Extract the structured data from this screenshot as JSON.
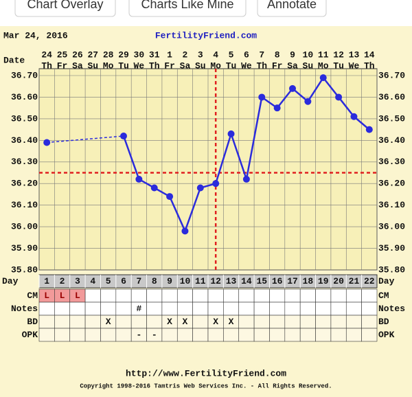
{
  "buttons": [
    "Chart Overlay",
    "Charts Like Mine",
    "Annotate"
  ],
  "chart_data": {
    "type": "line",
    "date_label": "Mar 24, 2016",
    "site": "FertilityFriend.com",
    "date_header": "Date",
    "day_header": "Day",
    "dates": [
      24,
      25,
      26,
      27,
      28,
      29,
      30,
      31,
      1,
      2,
      3,
      4,
      5,
      6,
      7,
      8,
      9,
      10,
      11,
      12,
      13,
      14
    ],
    "weekdays": [
      "Th",
      "Fr",
      "Sa",
      "Su",
      "Mo",
      "Tu",
      "We",
      "Th",
      "Fr",
      "Sa",
      "Su",
      "Mo",
      "Tu",
      "We",
      "Th",
      "Fr",
      "Sa",
      "Su",
      "Mo",
      "Tu",
      "We",
      "Th"
    ],
    "categories": [
      1,
      2,
      3,
      4,
      5,
      6,
      7,
      8,
      9,
      10,
      11,
      12,
      13,
      14,
      15,
      16,
      17,
      18,
      19,
      20,
      21,
      22
    ],
    "series": [
      {
        "color": "#2b2bdc",
        "values": [
          36.39,
          null,
          null,
          null,
          null,
          36.42,
          36.22,
          36.18,
          36.14,
          35.98,
          36.18,
          36.2,
          36.43,
          36.22,
          36.6,
          36.55,
          36.64,
          36.58,
          36.69,
          36.6,
          36.51,
          36.45
        ]
      }
    ],
    "ylim": [
      35.8,
      36.7
    ],
    "yticks": [
      {
        "value": 36.7,
        "label": "36.70"
      },
      {
        "value": 36.6,
        "label": "36.60"
      },
      {
        "value": 36.5,
        "label": "36.50"
      },
      {
        "value": 36.4,
        "label": "36.40"
      },
      {
        "value": 36.3,
        "label": "36.30"
      },
      {
        "value": 36.2,
        "label": "36.20"
      },
      {
        "value": 36.1,
        "label": "36.10"
      },
      {
        "value": 36.0,
        "label": "36.00"
      },
      {
        "value": 35.9,
        "label": "35.90"
      },
      {
        "value": 35.8,
        "label": "35.80"
      }
    ],
    "grid": true,
    "coverline": 36.25,
    "ovulation_day": 12,
    "marker_color": "#e02020",
    "rows": [
      {
        "label": "CM",
        "cells": [
          "L",
          "L",
          "L",
          null,
          null,
          null,
          null,
          null,
          null,
          null,
          null,
          null,
          null,
          null,
          null,
          null,
          null,
          null,
          null,
          null,
          null,
          null
        ]
      },
      {
        "label": "Notes",
        "cells": [
          null,
          null,
          null,
          null,
          null,
          null,
          "#",
          null,
          null,
          null,
          null,
          null,
          null,
          null,
          null,
          null,
          null,
          null,
          null,
          null,
          null,
          null
        ]
      },
      {
        "label": "BD",
        "cells": [
          null,
          null,
          null,
          null,
          "X",
          null,
          null,
          null,
          "X",
          "X",
          null,
          "X",
          "X",
          null,
          null,
          null,
          null,
          null,
          null,
          null,
          null,
          null
        ]
      },
      {
        "label": "OPK",
        "cells": [
          null,
          null,
          null,
          null,
          null,
          null,
          "-",
          "-",
          null,
          null,
          null,
          null,
          null,
          null,
          null,
          null,
          null,
          null,
          null,
          null,
          null,
          null
        ]
      }
    ],
    "footer_url": "http://www.FertilityFriend.com",
    "copyright": "Copyright 1998-2016 Tamtris Web Services Inc. - All Rights Reserved."
  }
}
